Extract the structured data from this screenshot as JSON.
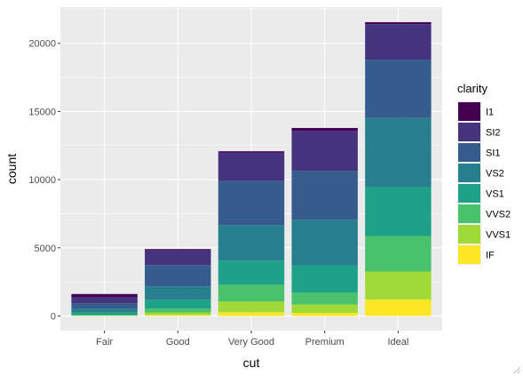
{
  "chart_data": {
    "type": "bar",
    "stacked": true,
    "categories": [
      "Fair",
      "Good",
      "Very Good",
      "Premium",
      "Ideal"
    ],
    "series": [
      {
        "name": "IF",
        "values": [
          9,
          71,
          268,
          230,
          1212
        ]
      },
      {
        "name": "VVS1",
        "values": [
          17,
          186,
          789,
          616,
          2047
        ]
      },
      {
        "name": "VVS2",
        "values": [
          69,
          286,
          1235,
          870,
          2606
        ]
      },
      {
        "name": "VS1",
        "values": [
          170,
          648,
          1775,
          1989,
          3589
        ]
      },
      {
        "name": "VS2",
        "values": [
          261,
          978,
          2591,
          3357,
          5071
        ]
      },
      {
        "name": "SI1",
        "values": [
          408,
          1560,
          3240,
          3575,
          4282
        ]
      },
      {
        "name": "SI2",
        "values": [
          466,
          1081,
          2100,
          2949,
          2598
        ]
      },
      {
        "name": "I1",
        "values": [
          210,
          96,
          84,
          205,
          146
        ]
      }
    ],
    "colors": {
      "I1": "#440154",
      "SI2": "#46337E",
      "SI1": "#365C8D",
      "VS2": "#277F8E",
      "VS1": "#1FA187",
      "VVS2": "#4AC16D",
      "VVS1": "#A0DA39",
      "IF": "#FDE725"
    },
    "xlabel": "cut",
    "ylabel": "count",
    "ylim": [
      -1078,
      22656
    ],
    "yticks": [
      0,
      5000,
      10000,
      15000,
      20000
    ],
    "ytick_labels": [
      "0",
      "5000",
      "10000",
      "15000",
      "20000"
    ],
    "grid": true,
    "panel_background": "#EBEBEB",
    "legend": {
      "title": "clarity",
      "position": "right",
      "entries": [
        "I1",
        "SI2",
        "SI1",
        "VS2",
        "VS1",
        "VVS2",
        "VVS1",
        "IF"
      ]
    }
  }
}
